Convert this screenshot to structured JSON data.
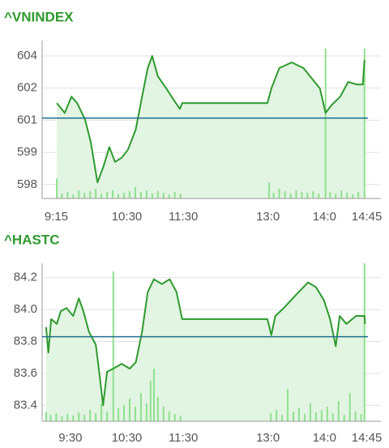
{
  "chart_data": [
    {
      "type": "line",
      "title": "^VNINDEX",
      "x": [
        9.26,
        9.4,
        9.52,
        9.62,
        9.76,
        9.86,
        9.98,
        10.09,
        10.19,
        10.29,
        10.41,
        10.52,
        10.66,
        10.77,
        10.87,
        10.95,
        11.05,
        11.2,
        11.34,
        11.44,
        11.48,
        12.99,
        13.06,
        13.2,
        13.42,
        13.63,
        13.78,
        13.92,
        14.02,
        14.13,
        14.28,
        14.42,
        14.57,
        14.68,
        14.71
      ],
      "series": [
        {
          "color": "#2e9a2e",
          "values": [
            601.6,
            601.14,
            601.9,
            601.6,
            600.84,
            599.8,
            597.9,
            598.67,
            599.55,
            598.86,
            599.05,
            599.43,
            600.38,
            601.9,
            603.23,
            603.8,
            602.85,
            602.28,
            601.71,
            601.33,
            601.6,
            601.6,
            602.28,
            603.23,
            603.5,
            603.23,
            602.74,
            602.28,
            601.14,
            601.52,
            601.9,
            602.59,
            602.47,
            602.47,
            603.61
          ]
        }
      ],
      "reference": 600.9,
      "reference_color": "#1f6f8f",
      "area_color": "#e2f4e2",
      "volume": {
        "color": "#8fe08f",
        "x": [
          9.26,
          9.35,
          9.45,
          9.55,
          9.65,
          9.75,
          9.85,
          9.95,
          10.05,
          10.15,
          10.25,
          10.35,
          10.45,
          10.55,
          10.65,
          10.75,
          10.85,
          10.95,
          11.05,
          11.15,
          11.25,
          11.35,
          11.45,
          13.02,
          13.1,
          13.2,
          13.3,
          13.4,
          13.5,
          13.6,
          13.7,
          13.8,
          13.9,
          14.02,
          14.1,
          14.2,
          14.3,
          14.4,
          14.5,
          14.6,
          14.71
        ],
        "values": [
          25,
          6,
          8,
          5,
          10,
          7,
          9,
          12,
          6,
          8,
          10,
          5,
          7,
          9,
          14,
          8,
          10,
          6,
          9,
          7,
          5,
          8,
          6,
          20,
          7,
          12,
          9,
          6,
          10,
          8,
          7,
          9,
          6,
          185,
          8,
          6,
          10,
          7,
          5,
          8,
          185
        ]
      },
      "xlim": [
        9,
        15
      ],
      "ylim": [
        597.15,
        604.52
      ],
      "xticks": [
        {
          "value": 9.25,
          "label": "9:15"
        },
        {
          "value": 10.5,
          "label": "10:30"
        },
        {
          "value": 11.5,
          "label": "11:30"
        },
        {
          "value": 13,
          "label": "13:0"
        },
        {
          "value": 14,
          "label": "14:0"
        },
        {
          "value": 14.75,
          "label": "14:45"
        }
      ],
      "yticks": [
        {
          "value": 597.8,
          "label": "598"
        },
        {
          "value": 599.3,
          "label": "599"
        },
        {
          "value": 600.8,
          "label": "601"
        },
        {
          "value": 602.3,
          "label": "602"
        },
        {
          "value": 603.8,
          "label": "604"
        }
      ],
      "grid": true
    },
    {
      "type": "line",
      "title": "^HASTC",
      "x": [
        9.07,
        9.11,
        9.16,
        9.26,
        9.33,
        9.43,
        9.55,
        9.65,
        9.73,
        9.83,
        9.95,
        10.02,
        10.08,
        10.15,
        10.26,
        10.41,
        10.55,
        10.66,
        10.77,
        10.87,
        10.98,
        11.12,
        11.26,
        11.38,
        11.48,
        12.99,
        13.06,
        13.13,
        13.28,
        13.49,
        13.71,
        13.85,
        13.99,
        14.1,
        14.2,
        14.27,
        14.39,
        14.56,
        14.71,
        14.72
      ],
      "series": [
        {
          "color": "#2e9a2e",
          "values": [
            83.89,
            83.73,
            83.94,
            83.91,
            83.99,
            84.01,
            83.96,
            84.07,
            83.99,
            83.86,
            83.78,
            83.58,
            83.4,
            83.61,
            83.63,
            83.66,
            83.63,
            83.67,
            83.86,
            84.11,
            84.19,
            84.16,
            84.19,
            84.11,
            83.94,
            83.94,
            83.84,
            83.96,
            84.01,
            84.09,
            84.17,
            84.14,
            84.06,
            83.94,
            83.77,
            83.96,
            83.91,
            83.96,
            83.96,
            83.91
          ]
        }
      ],
      "reference": 83.83,
      "reference_color": "#1f6f8f",
      "area_color": "#e2f4e2",
      "volume": {
        "color": "#8fe08f",
        "x": [
          9.07,
          9.15,
          9.25,
          9.35,
          9.45,
          9.55,
          9.65,
          9.75,
          9.85,
          9.95,
          10.05,
          10.15,
          10.26,
          10.35,
          10.45,
          10.55,
          10.65,
          10.75,
          10.85,
          10.92,
          10.98,
          11.05,
          11.15,
          11.25,
          11.35,
          11.45,
          13.05,
          13.15,
          13.25,
          13.35,
          13.45,
          13.55,
          13.65,
          13.75,
          13.85,
          13.95,
          14.05,
          14.15,
          14.25,
          14.35,
          14.45,
          14.55,
          14.65,
          14.71
        ],
        "values": [
          12,
          8,
          10,
          6,
          9,
          7,
          11,
          8,
          14,
          10,
          22,
          12,
          185,
          16,
          20,
          28,
          18,
          35,
          22,
          50,
          65,
          30,
          18,
          12,
          9,
          7,
          10,
          14,
          8,
          40,
          12,
          16,
          9,
          22,
          11,
          14,
          18,
          10,
          25,
          8,
          35,
          12,
          9,
          195
        ]
      },
      "xlim": [
        9,
        15
      ],
      "ylim": [
        83.3,
        84.29
      ],
      "xticks": [
        {
          "value": 9.5,
          "label": "9:30"
        },
        {
          "value": 10.5,
          "label": "10:30"
        },
        {
          "value": 11.5,
          "label": "11:30"
        },
        {
          "value": 13,
          "label": "13:0"
        },
        {
          "value": 14,
          "label": "14:0"
        },
        {
          "value": 14.75,
          "label": "14:45"
        }
      ],
      "yticks": [
        83.4,
        83.6,
        83.8,
        {
          "value": 84,
          "label": "84.0"
        },
        84.2
      ],
      "grid": true
    }
  ]
}
